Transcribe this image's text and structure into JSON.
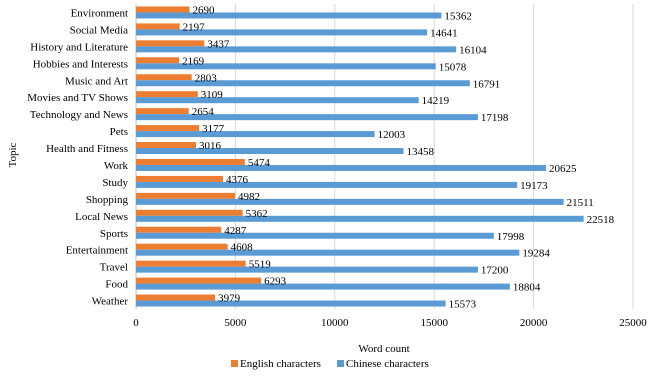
{
  "chart_data": {
    "type": "bar",
    "orientation": "horizontal",
    "categories": [
      "Environment",
      "Social Media",
      "History and Literature",
      "Hobbies and Interests",
      "Music and Art",
      "Movies and TV Shows",
      "Technology and News",
      "Pets",
      "Health and Fitness",
      "Work",
      "Study",
      "Shopping",
      "Local News",
      "Sports",
      "Entertainment",
      "Travel",
      "Food",
      "Weather"
    ],
    "series": [
      {
        "name": "English characters",
        "color": "#ED7D31",
        "values": [
          2690,
          2197,
          3437,
          2169,
          2803,
          3109,
          2654,
          3177,
          3016,
          5474,
          4376,
          4982,
          5362,
          4287,
          4608,
          5519,
          6293,
          3979
        ]
      },
      {
        "name": "Chinese characters",
        "color": "#5B9BD5",
        "values": [
          15362,
          14641,
          16104,
          15078,
          16791,
          14219,
          17198,
          12003,
          13458,
          20625,
          19173,
          21511,
          22518,
          17998,
          19284,
          17200,
          18804,
          15573
        ]
      }
    ],
    "xlabel": "Word count",
    "ylabel": "Topic",
    "xlim": [
      0,
      25000
    ],
    "xticks": [
      0,
      5000,
      10000,
      15000,
      20000,
      25000
    ],
    "grid": true,
    "legend_position": "bottom"
  }
}
